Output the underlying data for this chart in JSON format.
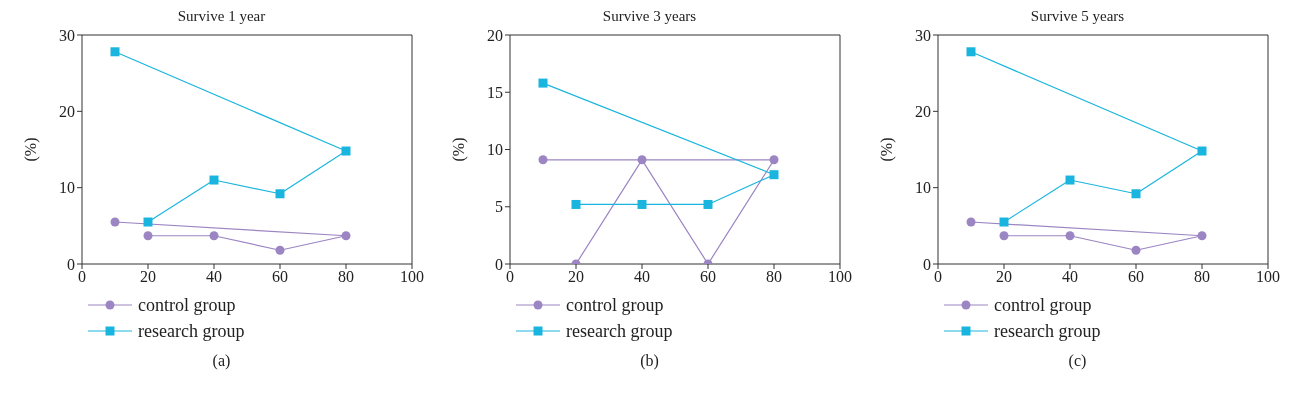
{
  "chart_data": [
    {
      "type": "line",
      "title": "Survive 1 year",
      "ylabel": "(%)",
      "xlim": [
        0,
        100
      ],
      "xticks": [
        0,
        20,
        40,
        60,
        80,
        100
      ],
      "ylim": [
        0,
        30
      ],
      "yticks": [
        0,
        10,
        20,
        30
      ],
      "grid": false,
      "legend": "bottom left",
      "annotations": [
        "(a)"
      ],
      "series": [
        {
          "name": "control group",
          "color": "#9b85c2",
          "marker": "circle",
          "x": [
            20,
            40,
            60,
            80,
            10
          ],
          "values": [
            3.7,
            3.7,
            1.8,
            3.7,
            5.5
          ]
        },
        {
          "name": "research group",
          "color": "#1ab5de",
          "marker": "square",
          "x": [
            20,
            40,
            60,
            80,
            10
          ],
          "values": [
            5.5,
            11,
            9.2,
            14.8,
            27.8
          ]
        }
      ]
    },
    {
      "type": "line",
      "title": "Survive 3 years",
      "ylabel": "(%)",
      "xlim": [
        0,
        100
      ],
      "xticks": [
        0,
        20,
        40,
        60,
        80,
        100
      ],
      "ylim": [
        0,
        20
      ],
      "yticks": [
        0,
        5,
        10,
        15,
        20
      ],
      "grid": false,
      "legend": "bottom left",
      "annotations": [
        "(b)"
      ],
      "series": [
        {
          "name": "control group",
          "color": "#9b85c2",
          "marker": "circle",
          "x": [
            20,
            40,
            60,
            80,
            10
          ],
          "values": [
            0,
            9.1,
            0,
            9.1,
            9.1
          ]
        },
        {
          "name": "research group",
          "color": "#1ab5de",
          "marker": "square",
          "x": [
            20,
            40,
            60,
            80,
            10
          ],
          "values": [
            5.2,
            5.2,
            5.2,
            7.8,
            15.8
          ]
        }
      ]
    },
    {
      "type": "line",
      "title": "Survive 5 years",
      "ylabel": "(%)",
      "xlim": [
        0,
        100
      ],
      "xticks": [
        0,
        20,
        40,
        60,
        80,
        100
      ],
      "ylim": [
        0,
        30
      ],
      "yticks": [
        0,
        10,
        20,
        30
      ],
      "grid": false,
      "legend": "bottom left",
      "annotations": [
        "(c)"
      ],
      "series": [
        {
          "name": "control group",
          "color": "#9b85c2",
          "marker": "circle",
          "x": [
            20,
            40,
            60,
            80,
            10
          ],
          "values": [
            3.7,
            3.7,
            1.8,
            3.7,
            5.5
          ]
        },
        {
          "name": "research group",
          "color": "#1ab5de",
          "marker": "square",
          "x": [
            20,
            40,
            60,
            80,
            10
          ],
          "values": [
            5.5,
            11,
            9.2,
            14.8,
            27.8
          ]
        }
      ]
    }
  ]
}
